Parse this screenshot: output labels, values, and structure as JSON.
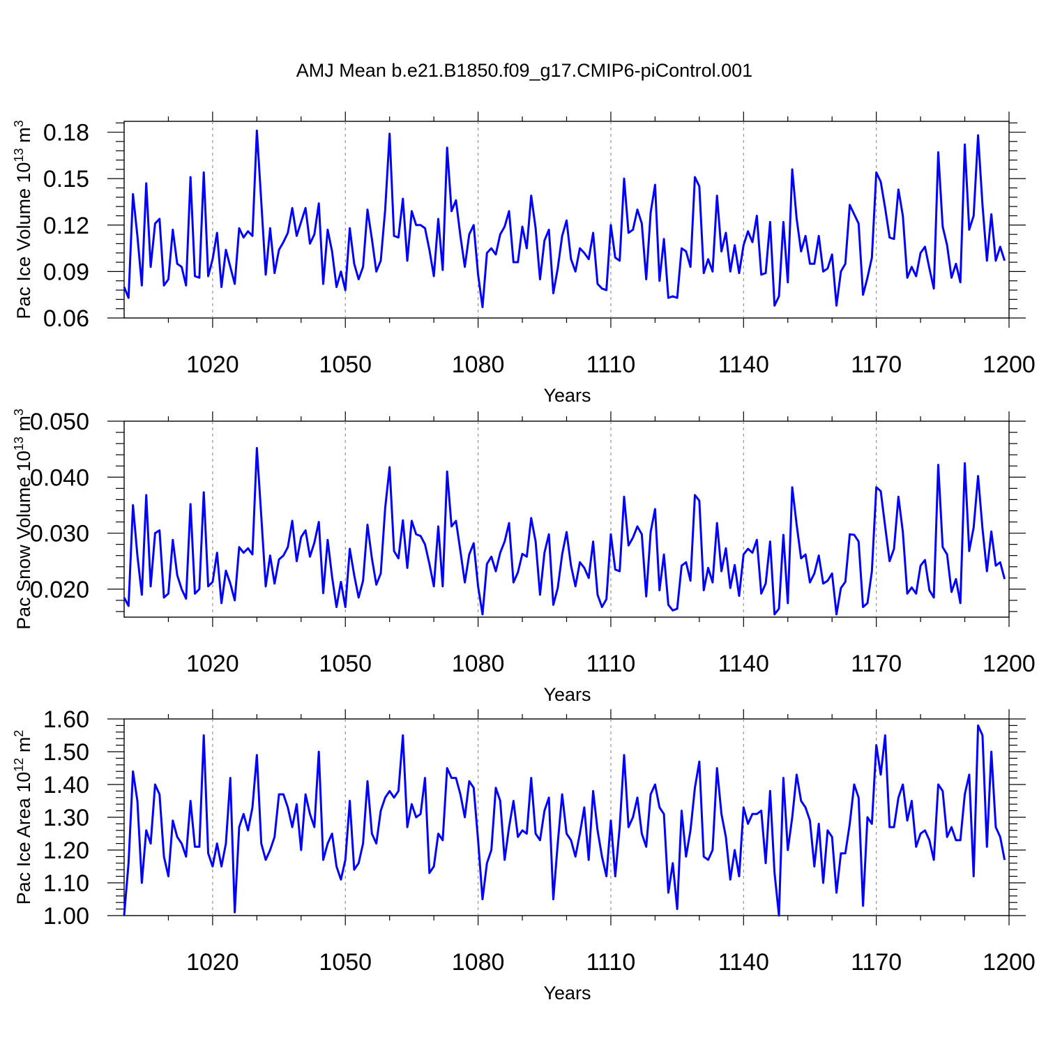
{
  "title": "AMJ Mean b.e21.B1850.f09_g17.CMIP6-piControl.001",
  "colors": {
    "series": "#0000ff",
    "axis": "#000000",
    "grid": "#888888"
  },
  "chart_data": [
    {
      "type": "line",
      "ylabel": "Pac Ice Volume 10",
      "ylabel_sup": "13",
      "ylabel_unit": " m",
      "ylabel_unit_sup": "3",
      "xlabel": "Years",
      "xlim": [
        1000,
        1200
      ],
      "ylim": [
        0.06,
        0.187
      ],
      "y_ticks": [
        "0.06",
        "0.09",
        "0.12",
        "0.15",
        "0.18"
      ],
      "x_ticks": [
        "1020",
        "1050",
        "1080",
        "1110",
        "1140",
        "1170",
        "1200"
      ],
      "series": [
        {
          "name": "Pac Ice Volume",
          "x_start": 1000,
          "values": [
            0.08,
            0.073,
            0.14,
            0.113,
            0.081,
            0.147,
            0.093,
            0.121,
            0.124,
            0.081,
            0.085,
            0.117,
            0.095,
            0.093,
            0.081,
            0.151,
            0.087,
            0.086,
            0.154,
            0.087,
            0.098,
            0.115,
            0.08,
            0.104,
            0.093,
            0.082,
            0.118,
            0.112,
            0.116,
            0.113,
            0.181,
            0.135,
            0.088,
            0.118,
            0.089,
            0.104,
            0.109,
            0.115,
            0.131,
            0.113,
            0.122,
            0.131,
            0.108,
            0.114,
            0.134,
            0.082,
            0.117,
            0.103,
            0.08,
            0.09,
            0.078,
            0.118,
            0.095,
            0.085,
            0.093,
            0.13,
            0.111,
            0.09,
            0.097,
            0.13,
            0.179,
            0.113,
            0.112,
            0.137,
            0.097,
            0.129,
            0.12,
            0.12,
            0.118,
            0.104,
            0.087,
            0.124,
            0.091,
            0.17,
            0.129,
            0.136,
            0.113,
            0.093,
            0.114,
            0.12,
            0.088,
            0.067,
            0.102,
            0.105,
            0.101,
            0.114,
            0.119,
            0.129,
            0.096,
            0.096,
            0.119,
            0.105,
            0.139,
            0.118,
            0.085,
            0.11,
            0.117,
            0.076,
            0.092,
            0.113,
            0.123,
            0.098,
            0.09,
            0.105,
            0.102,
            0.098,
            0.115,
            0.082,
            0.079,
            0.078,
            0.12,
            0.099,
            0.097,
            0.15,
            0.115,
            0.117,
            0.13,
            0.121,
            0.085,
            0.128,
            0.146,
            0.084,
            0.111,
            0.073,
            0.074,
            0.073,
            0.105,
            0.103,
            0.093,
            0.151,
            0.145,
            0.089,
            0.098,
            0.09,
            0.139,
            0.103,
            0.115,
            0.09,
            0.107,
            0.089,
            0.107,
            0.116,
            0.109,
            0.126,
            0.088,
            0.089,
            0.122,
            0.068,
            0.074,
            0.122,
            0.083,
            0.156,
            0.124,
            0.103,
            0.113,
            0.095,
            0.095,
            0.113,
            0.09,
            0.092,
            0.101,
            0.068,
            0.09,
            0.095,
            0.133,
            0.127,
            0.121,
            0.075,
            0.086,
            0.099,
            0.154,
            0.148,
            0.131,
            0.112,
            0.111,
            0.143,
            0.126,
            0.086,
            0.093,
            0.087,
            0.102,
            0.106,
            0.092,
            0.079,
            0.167,
            0.119,
            0.107,
            0.086,
            0.095,
            0.083,
            0.172,
            0.117,
            0.126,
            0.178,
            0.133,
            0.097,
            0.127,
            0.097,
            0.106,
            0.097
          ]
        }
      ]
    },
    {
      "type": "line",
      "ylabel": "Pac Snow Volume 10",
      "ylabel_sup": "13",
      "ylabel_unit": " m",
      "ylabel_unit_sup": "3",
      "xlabel": "Years",
      "xlim": [
        1000,
        1200
      ],
      "ylim": [
        0.015,
        0.05
      ],
      "y_ticks": [
        "0.020",
        "0.030",
        "0.040",
        "0.050"
      ],
      "x_ticks": [
        "1020",
        "1050",
        "1080",
        "1110",
        "1140",
        "1170",
        "1200"
      ],
      "series": [
        {
          "name": "Pac Snow Volume",
          "x_start": 1000,
          "values": [
            0.0185,
            0.017,
            0.035,
            0.026,
            0.019,
            0.0368,
            0.0205,
            0.03,
            0.0305,
            0.0185,
            0.0192,
            0.0288,
            0.0225,
            0.02,
            0.0183,
            0.0352,
            0.0192,
            0.02,
            0.0373,
            0.0205,
            0.0213,
            0.0265,
            0.0175,
            0.0233,
            0.021,
            0.018,
            0.0275,
            0.0265,
            0.0273,
            0.0262,
            0.0452,
            0.033,
            0.0205,
            0.026,
            0.021,
            0.0253,
            0.026,
            0.0275,
            0.0322,
            0.025,
            0.0293,
            0.0305,
            0.0258,
            0.0283,
            0.032,
            0.0193,
            0.0288,
            0.0222,
            0.0168,
            0.0213,
            0.0168,
            0.0272,
            0.0225,
            0.0185,
            0.0215,
            0.0315,
            0.0255,
            0.0208,
            0.0228,
            0.0345,
            0.0418,
            0.0268,
            0.0255,
            0.0323,
            0.0238,
            0.0322,
            0.0298,
            0.0295,
            0.028,
            0.0245,
            0.0205,
            0.0312,
            0.0205,
            0.041,
            0.0312,
            0.0322,
            0.0268,
            0.0212,
            0.0262,
            0.0282,
            0.0205,
            0.0155,
            0.0245,
            0.0258,
            0.0232,
            0.0265,
            0.0285,
            0.0318,
            0.0212,
            0.023,
            0.0263,
            0.0258,
            0.0327,
            0.0285,
            0.019,
            0.0265,
            0.0298,
            0.0172,
            0.0202,
            0.0262,
            0.0302,
            0.0242,
            0.0205,
            0.0248,
            0.0238,
            0.022,
            0.0285,
            0.019,
            0.0168,
            0.0182,
            0.0298,
            0.0235,
            0.0232,
            0.0365,
            0.0278,
            0.0292,
            0.0312,
            0.0298,
            0.0187,
            0.0302,
            0.0343,
            0.0198,
            0.0262,
            0.0172,
            0.0162,
            0.0165,
            0.0242,
            0.0248,
            0.0215,
            0.0368,
            0.0358,
            0.0198,
            0.0238,
            0.0212,
            0.0318,
            0.0232,
            0.0273,
            0.0202,
            0.0243,
            0.0188,
            0.0262,
            0.0272,
            0.0265,
            0.0288,
            0.0192,
            0.021,
            0.0285,
            0.0155,
            0.0165,
            0.0297,
            0.0175,
            0.0382,
            0.0315,
            0.0255,
            0.0262,
            0.0212,
            0.0228,
            0.026,
            0.021,
            0.0215,
            0.0228,
            0.0155,
            0.0202,
            0.0213,
            0.0298,
            0.0297,
            0.0285,
            0.0168,
            0.0175,
            0.0232,
            0.0382,
            0.0375,
            0.0312,
            0.025,
            0.0272,
            0.0365,
            0.0302,
            0.0192,
            0.0203,
            0.0192,
            0.0242,
            0.0252,
            0.0198,
            0.0185,
            0.0422,
            0.0275,
            0.0262,
            0.0195,
            0.0218,
            0.0175,
            0.0425,
            0.0268,
            0.031,
            0.0402,
            0.0308,
            0.0232,
            0.0303,
            0.0242,
            0.0248,
            0.0218
          ]
        }
      ]
    },
    {
      "type": "line",
      "ylabel": "Pac Ice Area 10",
      "ylabel_sup": "12",
      "ylabel_unit": " m",
      "ylabel_unit_sup": "2",
      "xlabel": "Years",
      "xlim": [
        1000,
        1200
      ],
      "ylim": [
        1.0,
        1.6
      ],
      "y_ticks": [
        "1.00",
        "1.10",
        "1.20",
        "1.30",
        "1.40",
        "1.50",
        "1.60"
      ],
      "x_ticks": [
        "1020",
        "1050",
        "1080",
        "1110",
        "1140",
        "1170",
        "1200"
      ],
      "series": [
        {
          "name": "Pac Ice Area",
          "x_start": 1000,
          "values": [
            1.0,
            1.16,
            1.44,
            1.35,
            1.1,
            1.26,
            1.22,
            1.4,
            1.37,
            1.18,
            1.12,
            1.29,
            1.24,
            1.22,
            1.18,
            1.35,
            1.21,
            1.21,
            1.55,
            1.19,
            1.15,
            1.22,
            1.15,
            1.22,
            1.42,
            1.01,
            1.27,
            1.31,
            1.26,
            1.33,
            1.49,
            1.22,
            1.17,
            1.2,
            1.24,
            1.37,
            1.37,
            1.33,
            1.27,
            1.34,
            1.2,
            1.37,
            1.31,
            1.27,
            1.5,
            1.17,
            1.22,
            1.25,
            1.15,
            1.11,
            1.17,
            1.35,
            1.14,
            1.16,
            1.22,
            1.41,
            1.25,
            1.22,
            1.32,
            1.36,
            1.38,
            1.36,
            1.38,
            1.55,
            1.27,
            1.34,
            1.3,
            1.31,
            1.42,
            1.13,
            1.15,
            1.25,
            1.23,
            1.45,
            1.42,
            1.42,
            1.37,
            1.3,
            1.41,
            1.39,
            1.23,
            1.05,
            1.16,
            1.2,
            1.39,
            1.35,
            1.17,
            1.27,
            1.35,
            1.24,
            1.26,
            1.25,
            1.42,
            1.25,
            1.23,
            1.32,
            1.36,
            1.05,
            1.22,
            1.37,
            1.25,
            1.23,
            1.18,
            1.25,
            1.33,
            1.17,
            1.38,
            1.26,
            1.18,
            1.12,
            1.29,
            1.12,
            1.27,
            1.49,
            1.27,
            1.3,
            1.36,
            1.25,
            1.21,
            1.37,
            1.4,
            1.33,
            1.31,
            1.07,
            1.16,
            1.02,
            1.32,
            1.18,
            1.26,
            1.39,
            1.47,
            1.18,
            1.17,
            1.2,
            1.45,
            1.31,
            1.24,
            1.11,
            1.2,
            1.12,
            1.33,
            1.28,
            1.31,
            1.31,
            1.32,
            1.16,
            1.38,
            1.13,
            1.0,
            1.42,
            1.2,
            1.3,
            1.43,
            1.35,
            1.33,
            1.29,
            1.15,
            1.28,
            1.1,
            1.26,
            1.24,
            1.07,
            1.19,
            1.19,
            1.28,
            1.4,
            1.36,
            1.03,
            1.3,
            1.28,
            1.52,
            1.43,
            1.55,
            1.27,
            1.27,
            1.36,
            1.4,
            1.29,
            1.35,
            1.21,
            1.25,
            1.26,
            1.23,
            1.17,
            1.4,
            1.38,
            1.24,
            1.27,
            1.23,
            1.23,
            1.37,
            1.43,
            1.12,
            1.58,
            1.55,
            1.21,
            1.5,
            1.27,
            1.24,
            1.17
          ]
        }
      ]
    }
  ]
}
